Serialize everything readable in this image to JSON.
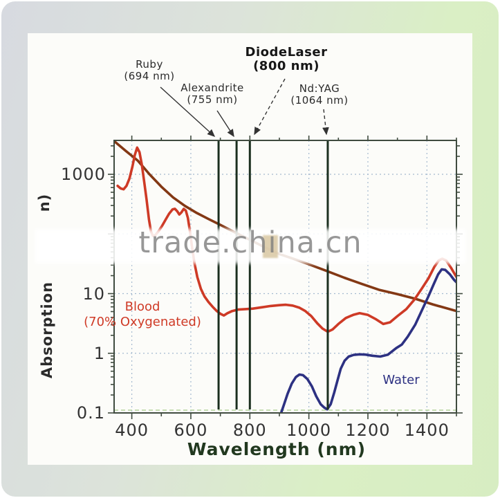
{
  "watermark": {
    "text": "trade.china.cn"
  },
  "labels": {
    "ruby": {
      "name": "Ruby",
      "nm": "(694 nm)"
    },
    "alexandrite": {
      "name": "Alexandrite",
      "nm": "(755 nm)"
    },
    "diode": {
      "name": "DiodeLaser",
      "nm": "(800 nm)"
    },
    "ndyag": {
      "name": "Nd:YAG",
      "nm": "(1064 nm)"
    },
    "blood": {
      "line1": "Blood",
      "line2": "(70% Oxygenated)"
    },
    "water": "Water",
    "xaxis_title": "Wavelength (nm)",
    "yaxis_title": "Absorption",
    "yaxis_fragment": "n)"
  },
  "chart_data": {
    "type": "line",
    "title": "",
    "xlabel": "Wavelength (nm)",
    "ylabel": "Absorption",
    "x_axis": {
      "scale": "linear",
      "min": 340,
      "max": 1500,
      "major_ticks": [
        400,
        600,
        800,
        1000,
        1200,
        1400
      ],
      "minor_step": 100
    },
    "y_axis": {
      "scale": "log",
      "min": 0.1,
      "max": 3700,
      "tick_values": [
        1000,
        10,
        1,
        0.1
      ],
      "tick_labels": [
        "1000",
        "10",
        "1",
        "0.1"
      ],
      "gridline_values": [
        1000,
        100,
        10,
        1
      ]
    },
    "grid": true,
    "legend_position": "none",
    "lasers": [
      {
        "label": "Ruby",
        "nm": 694
      },
      {
        "label": "Alexandrite",
        "nm": 755
      },
      {
        "label": "DiodeLaser",
        "nm": 800
      },
      {
        "label": "Nd:YAG",
        "nm": 1064
      }
    ],
    "colors": {
      "axis": "#3f4b3f",
      "grid": "#a4b9cf",
      "laser_line": "#1b2f1f",
      "blood": "#ce3a26",
      "water": "#2d3182",
      "brown_curve": "#833814",
      "baseline_dash": "#b4d49c"
    },
    "series": [
      {
        "id": "brown-curve",
        "label": "",
        "color": "#833814",
        "points": [
          [
            340,
            3600
          ],
          [
            380,
            2450
          ],
          [
            420,
            1700
          ],
          [
            460,
            1000
          ],
          [
            500,
            620
          ],
          [
            540,
            410
          ],
          [
            580,
            295
          ],
          [
            620,
            225
          ],
          [
            660,
            178
          ],
          [
            700,
            142
          ],
          [
            750,
            106
          ],
          [
            800,
            80
          ],
          [
            850,
            60
          ],
          [
            900,
            46
          ],
          [
            950,
            38
          ],
          [
            1000,
            31
          ],
          [
            1060,
            24
          ],
          [
            1120,
            18.5
          ],
          [
            1180,
            14.5
          ],
          [
            1240,
            11.5
          ],
          [
            1300,
            9.8
          ],
          [
            1360,
            8.2
          ],
          [
            1420,
            6.6
          ],
          [
            1500,
            5.1
          ]
        ]
      },
      {
        "id": "blood",
        "label": "Blood (70% Oxygenated)",
        "color": "#ce3a26",
        "points": [
          [
            352,
            640
          ],
          [
            362,
            580
          ],
          [
            372,
            560
          ],
          [
            382,
            640
          ],
          [
            392,
            850
          ],
          [
            402,
            1350
          ],
          [
            410,
            2100
          ],
          [
            418,
            2800
          ],
          [
            426,
            2350
          ],
          [
            434,
            1450
          ],
          [
            442,
            750
          ],
          [
            450,
            380
          ],
          [
            458,
            175
          ],
          [
            465,
            110
          ],
          [
            472,
            92
          ],
          [
            480,
            96
          ],
          [
            490,
            110
          ],
          [
            502,
            135
          ],
          [
            514,
            172
          ],
          [
            526,
            218
          ],
          [
            538,
            258
          ],
          [
            546,
            264
          ],
          [
            554,
            240
          ],
          [
            561,
            212
          ],
          [
            568,
            230
          ],
          [
            576,
            263
          ],
          [
            583,
            246
          ],
          [
            590,
            185
          ],
          [
            597,
            110
          ],
          [
            604,
            60
          ],
          [
            612,
            33
          ],
          [
            622,
            19
          ],
          [
            634,
            12
          ],
          [
            646,
            9
          ],
          [
            660,
            7.2
          ],
          [
            674,
            6
          ],
          [
            688,
            5.1
          ],
          [
            700,
            4.6
          ],
          [
            712,
            4.3
          ],
          [
            724,
            4.7
          ],
          [
            740,
            5.1
          ],
          [
            760,
            5.4
          ],
          [
            785,
            5.5
          ],
          [
            810,
            5.6
          ],
          [
            840,
            5.9
          ],
          [
            870,
            6.2
          ],
          [
            900,
            6.4
          ],
          [
            922,
            6.5
          ],
          [
            945,
            6.3
          ],
          [
            968,
            5.8
          ],
          [
            988,
            5.1
          ],
          [
            1008,
            4.2
          ],
          [
            1028,
            3.2
          ],
          [
            1046,
            2.6
          ],
          [
            1064,
            2.3
          ],
          [
            1080,
            2.5
          ],
          [
            1100,
            3.1
          ],
          [
            1125,
            3.9
          ],
          [
            1150,
            4.4
          ],
          [
            1172,
            4.7
          ],
          [
            1200,
            4.4
          ],
          [
            1228,
            3.7
          ],
          [
            1252,
            3.1
          ],
          [
            1275,
            3.3
          ],
          [
            1300,
            4.2
          ],
          [
            1330,
            5.5
          ],
          [
            1358,
            8
          ],
          [
            1382,
            12
          ],
          [
            1405,
            18
          ],
          [
            1425,
            28
          ],
          [
            1440,
            36
          ],
          [
            1452,
            38.5
          ],
          [
            1465,
            36
          ],
          [
            1482,
            27
          ],
          [
            1500,
            19
          ]
        ]
      },
      {
        "id": "water",
        "label": "Water",
        "color": "#2d3182",
        "points": [
          [
            906,
            0.1
          ],
          [
            916,
            0.14
          ],
          [
            928,
            0.21
          ],
          [
            942,
            0.31
          ],
          [
            956,
            0.4
          ],
          [
            968,
            0.44
          ],
          [
            980,
            0.43
          ],
          [
            995,
            0.37
          ],
          [
            1010,
            0.28
          ],
          [
            1025,
            0.19
          ],
          [
            1040,
            0.14
          ],
          [
            1052,
            0.123
          ],
          [
            1062,
            0.115
          ],
          [
            1074,
            0.14
          ],
          [
            1086,
            0.22
          ],
          [
            1097,
            0.35
          ],
          [
            1108,
            0.55
          ],
          [
            1121,
            0.75
          ],
          [
            1135,
            0.88
          ],
          [
            1152,
            0.94
          ],
          [
            1172,
            0.96
          ],
          [
            1192,
            0.95
          ],
          [
            1215,
            0.91
          ],
          [
            1242,
            0.88
          ],
          [
            1268,
            0.95
          ],
          [
            1296,
            1.22
          ],
          [
            1315,
            1.4
          ],
          [
            1335,
            1.9
          ],
          [
            1360,
            3
          ],
          [
            1385,
            5.5
          ],
          [
            1405,
            9
          ],
          [
            1422,
            14
          ],
          [
            1438,
            21
          ],
          [
            1450,
            25.5
          ],
          [
            1462,
            25
          ],
          [
            1478,
            21
          ],
          [
            1492,
            17
          ],
          [
            1500,
            15.5
          ]
        ]
      }
    ]
  }
}
